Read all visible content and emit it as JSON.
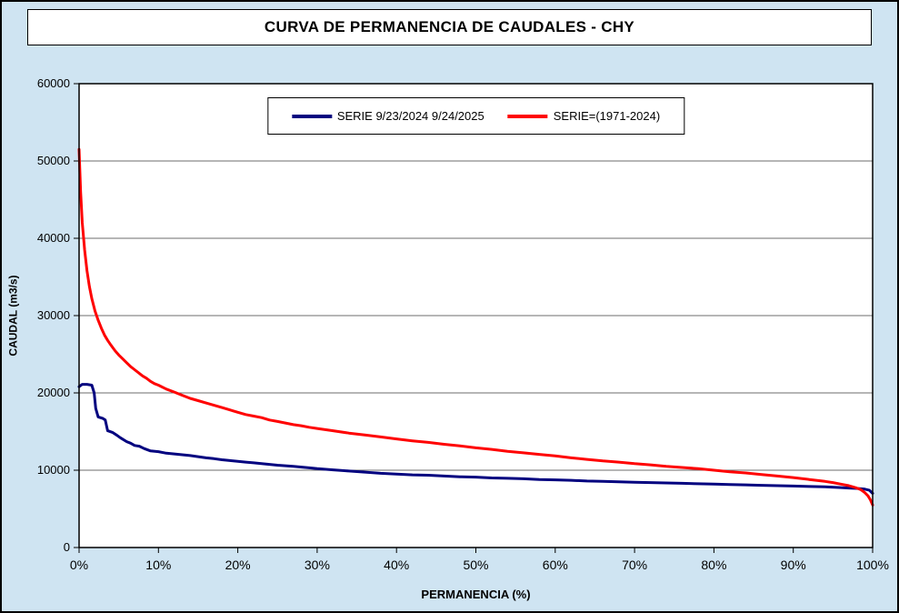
{
  "title": "CURVA DE PERMANENCIA DE CAUDALES - CHY",
  "colors": {
    "background": "#cfe4f2",
    "plot_background": "#ffffff",
    "border": "#000000",
    "gridline": "#6e6e6e",
    "series1": "#00007f",
    "series2": "#ff0000"
  },
  "chart_data": {
    "type": "line",
    "title": "CURVA DE PERMANENCIA DE CAUDALES - CHY",
    "xlabel": "PERMANENCIA (%)",
    "ylabel": "CAUDAL (m3/s)",
    "xlim": [
      0,
      100
    ],
    "ylim": [
      0,
      60000
    ],
    "grid": "horizontal",
    "legend_position": "top-center-inside",
    "x_ticks": [
      0,
      10,
      20,
      30,
      40,
      50,
      60,
      70,
      80,
      90,
      100
    ],
    "x_tick_labels": [
      "0%",
      "10%",
      "20%",
      "30%",
      "40%",
      "50%",
      "60%",
      "70%",
      "80%",
      "90%",
      "100%"
    ],
    "y_ticks": [
      0,
      10000,
      20000,
      30000,
      40000,
      50000,
      60000
    ],
    "y_tick_labels": [
      "0",
      "10000",
      "20000",
      "30000",
      "40000",
      "50000",
      "60000"
    ],
    "series": [
      {
        "name": "SERIE 9/23/2024 9/24/2025",
        "color": "#00007f",
        "points": [
          [
            0,
            20800
          ],
          [
            0.4,
            21100
          ],
          [
            1.0,
            21100
          ],
          [
            1.6,
            21000
          ],
          [
            1.9,
            20000
          ],
          [
            2.1,
            18000
          ],
          [
            2.4,
            16900
          ],
          [
            3.0,
            16700
          ],
          [
            3.3,
            16500
          ],
          [
            3.6,
            15100
          ],
          [
            4.2,
            14900
          ],
          [
            4.8,
            14500
          ],
          [
            5.2,
            14200
          ],
          [
            6.0,
            13700
          ],
          [
            6.5,
            13500
          ],
          [
            7.0,
            13200
          ],
          [
            7.6,
            13100
          ],
          [
            8.2,
            12800
          ],
          [
            9.0,
            12500
          ],
          [
            10,
            12400
          ],
          [
            11,
            12200
          ],
          [
            12,
            12100
          ],
          [
            13,
            12000
          ],
          [
            14,
            11900
          ],
          [
            15,
            11750
          ],
          [
            16,
            11600
          ],
          [
            17,
            11500
          ],
          [
            18,
            11350
          ],
          [
            19,
            11250
          ],
          [
            20,
            11150
          ],
          [
            21,
            11050
          ],
          [
            22,
            10950
          ],
          [
            23,
            10850
          ],
          [
            25,
            10650
          ],
          [
            27,
            10500
          ],
          [
            29,
            10300
          ],
          [
            30,
            10200
          ],
          [
            32,
            10050
          ],
          [
            34,
            9900
          ],
          [
            36,
            9750
          ],
          [
            38,
            9600
          ],
          [
            40,
            9500
          ],
          [
            42,
            9400
          ],
          [
            44,
            9350
          ],
          [
            46,
            9250
          ],
          [
            48,
            9150
          ],
          [
            50,
            9100
          ],
          [
            52,
            9000
          ],
          [
            54,
            8950
          ],
          [
            56,
            8900
          ],
          [
            58,
            8800
          ],
          [
            60,
            8750
          ],
          [
            62,
            8700
          ],
          [
            64,
            8600
          ],
          [
            66,
            8550
          ],
          [
            68,
            8500
          ],
          [
            70,
            8450
          ],
          [
            72,
            8400
          ],
          [
            74,
            8350
          ],
          [
            76,
            8300
          ],
          [
            78,
            8250
          ],
          [
            80,
            8200
          ],
          [
            82,
            8150
          ],
          [
            84,
            8100
          ],
          [
            86,
            8050
          ],
          [
            88,
            8000
          ],
          [
            90,
            7950
          ],
          [
            92,
            7900
          ],
          [
            94,
            7850
          ],
          [
            96,
            7750
          ],
          [
            97,
            7700
          ],
          [
            98,
            7650
          ],
          [
            99,
            7550
          ],
          [
            99.6,
            7400
          ],
          [
            100,
            7000
          ]
        ]
      },
      {
        "name": "SERIE=(1971-2024)",
        "color": "#ff0000",
        "points": [
          [
            0,
            51500
          ],
          [
            0.2,
            46000
          ],
          [
            0.4,
            42000
          ],
          [
            0.7,
            38500
          ],
          [
            1.0,
            35800
          ],
          [
            1.3,
            33800
          ],
          [
            1.6,
            32200
          ],
          [
            2.0,
            30600
          ],
          [
            2.4,
            29400
          ],
          [
            2.8,
            28400
          ],
          [
            3.2,
            27500
          ],
          [
            3.6,
            26800
          ],
          [
            4.0,
            26200
          ],
          [
            4.5,
            25500
          ],
          [
            5.0,
            24900
          ],
          [
            5.5,
            24400
          ],
          [
            6.0,
            23900
          ],
          [
            6.5,
            23400
          ],
          [
            7.0,
            23000
          ],
          [
            7.5,
            22600
          ],
          [
            8.0,
            22200
          ],
          [
            8.5,
            21900
          ],
          [
            9.0,
            21500
          ],
          [
            9.5,
            21200
          ],
          [
            10,
            21000
          ],
          [
            11,
            20500
          ],
          [
            12,
            20100
          ],
          [
            13,
            19700
          ],
          [
            14,
            19300
          ],
          [
            15,
            19000
          ],
          [
            16,
            18700
          ],
          [
            17,
            18400
          ],
          [
            18,
            18100
          ],
          [
            19,
            17800
          ],
          [
            20,
            17500
          ],
          [
            21,
            17200
          ],
          [
            22,
            17000
          ],
          [
            23,
            16800
          ],
          [
            24,
            16500
          ],
          [
            25,
            16300
          ],
          [
            26,
            16100
          ],
          [
            27,
            15900
          ],
          [
            28,
            15750
          ],
          [
            29,
            15550
          ],
          [
            30,
            15400
          ],
          [
            32,
            15100
          ],
          [
            34,
            14800
          ],
          [
            36,
            14550
          ],
          [
            38,
            14300
          ],
          [
            40,
            14050
          ],
          [
            42,
            13800
          ],
          [
            44,
            13600
          ],
          [
            46,
            13350
          ],
          [
            48,
            13150
          ],
          [
            50,
            12900
          ],
          [
            52,
            12700
          ],
          [
            54,
            12450
          ],
          [
            56,
            12250
          ],
          [
            58,
            12050
          ],
          [
            60,
            11850
          ],
          [
            62,
            11600
          ],
          [
            64,
            11400
          ],
          [
            66,
            11200
          ],
          [
            68,
            11050
          ],
          [
            70,
            10850
          ],
          [
            72,
            10700
          ],
          [
            74,
            10500
          ],
          [
            76,
            10350
          ],
          [
            78,
            10200
          ],
          [
            80,
            10000
          ],
          [
            82,
            9800
          ],
          [
            84,
            9650
          ],
          [
            86,
            9450
          ],
          [
            88,
            9250
          ],
          [
            90,
            9050
          ],
          [
            92,
            8800
          ],
          [
            94,
            8550
          ],
          [
            95,
            8400
          ],
          [
            96,
            8200
          ],
          [
            97,
            8000
          ],
          [
            98,
            7700
          ],
          [
            98.5,
            7500
          ],
          [
            99,
            7100
          ],
          [
            99.4,
            6700
          ],
          [
            99.7,
            6200
          ],
          [
            100,
            5500
          ]
        ]
      }
    ]
  }
}
